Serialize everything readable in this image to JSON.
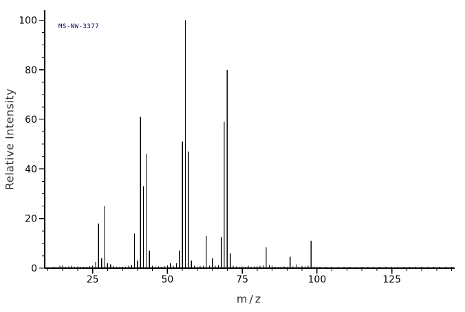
{
  "chart_data": {
    "type": "bar",
    "subtype": "mass-spectrum",
    "annotation": "MS-NW-3377",
    "xlabel": "m/z",
    "ylabel": "Relative Intensity",
    "x_min": 9,
    "x_max": 146,
    "y_min": 0,
    "y_max": 104,
    "x_major_ticks": [
      25,
      50,
      75,
      100,
      125
    ],
    "x_minor_tick_step": 5,
    "y_major_ticks": [
      0,
      20,
      40,
      60,
      80,
      100
    ],
    "y_minor_tick_step": 5,
    "grid": false,
    "legend": false,
    "main_peaks": [
      [
        26,
        2.5
      ],
      [
        27,
        18
      ],
      [
        28,
        4
      ],
      [
        29,
        25
      ],
      [
        30,
        2
      ],
      [
        31,
        1.5
      ],
      [
        38,
        1.2
      ],
      [
        39,
        14
      ],
      [
        40,
        3
      ],
      [
        41,
        61
      ],
      [
        42,
        33
      ],
      [
        43,
        46
      ],
      [
        44,
        7
      ],
      [
        51,
        2
      ],
      [
        53,
        2
      ],
      [
        54,
        7
      ],
      [
        55,
        51
      ],
      [
        56,
        100
      ],
      [
        57,
        47
      ],
      [
        58,
        3
      ],
      [
        63,
        13
      ],
      [
        65,
        4
      ],
      [
        68,
        12.5
      ],
      [
        69,
        59
      ],
      [
        70,
        80
      ],
      [
        71,
        6
      ],
      [
        83,
        8.5
      ],
      [
        91,
        4.5
      ],
      [
        93,
        1.5
      ],
      [
        98,
        11
      ]
    ],
    "noise_peaks": [
      [
        12,
        0.6
      ],
      [
        14,
        0.9
      ],
      [
        15,
        1.1
      ],
      [
        16,
        0.5
      ],
      [
        17,
        0.7
      ],
      [
        18,
        1.0
      ],
      [
        19,
        0.5
      ],
      [
        20,
        0.7
      ],
      [
        21,
        0.5
      ],
      [
        22,
        0.6
      ],
      [
        23,
        0.5
      ],
      [
        24,
        0.8
      ],
      [
        25,
        0.9
      ],
      [
        32,
        0.8
      ],
      [
        33,
        0.5
      ],
      [
        34,
        0.5
      ],
      [
        35,
        0.6
      ],
      [
        36,
        0.5
      ],
      [
        37,
        0.9
      ],
      [
        45,
        1.0
      ],
      [
        46,
        0.6
      ],
      [
        47,
        0.7
      ],
      [
        48,
        0.5
      ],
      [
        49,
        0.8
      ],
      [
        50,
        1.1
      ],
      [
        52,
        0.9
      ],
      [
        59,
        0.9
      ],
      [
        60,
        0.6
      ],
      [
        61,
        0.8
      ],
      [
        62,
        1.0
      ],
      [
        64,
        0.9
      ],
      [
        66,
        0.9
      ],
      [
        67,
        1.2
      ],
      [
        72,
        1.0
      ],
      [
        73,
        0.7
      ],
      [
        74,
        0.6
      ],
      [
        75,
        0.7
      ],
      [
        76,
        0.6
      ],
      [
        77,
        0.9
      ],
      [
        78,
        0.6
      ],
      [
        79,
        0.7
      ],
      [
        80,
        0.7
      ],
      [
        81,
        0.9
      ],
      [
        82,
        1.1
      ],
      [
        84,
        1.3
      ],
      [
        85,
        0.9
      ],
      [
        86,
        0.6
      ],
      [
        87,
        0.5
      ],
      [
        88,
        0.6
      ],
      [
        89,
        0.7
      ],
      [
        90,
        0.6
      ],
      [
        92,
        0.7
      ],
      [
        94,
        0.6
      ],
      [
        95,
        0.8
      ],
      [
        96,
        0.7
      ],
      [
        97,
        0.9
      ],
      [
        99,
        0.7
      ],
      [
        100,
        0.6
      ],
      [
        101,
        0.5
      ],
      [
        103,
        0.6
      ],
      [
        105,
        0.6
      ],
      [
        107,
        0.5
      ],
      [
        109,
        0.6
      ],
      [
        111,
        0.5
      ],
      [
        113,
        0.6
      ],
      [
        115,
        0.5
      ],
      [
        117,
        0.6
      ],
      [
        119,
        0.5
      ],
      [
        121,
        0.6
      ],
      [
        123,
        0.5
      ],
      [
        125,
        0.6
      ],
      [
        127,
        0.5
      ],
      [
        129,
        0.6
      ],
      [
        131,
        0.5
      ],
      [
        133,
        0.6
      ],
      [
        135,
        0.5
      ],
      [
        137,
        0.6
      ],
      [
        139,
        0.5
      ],
      [
        141,
        0.6
      ],
      [
        143,
        0.5
      ],
      [
        145,
        0.5
      ]
    ],
    "colors": {
      "background": "#ffffff",
      "axis": "#000000",
      "bars": "#000000",
      "tick_labels": "#000000",
      "axis_titles": "#333333",
      "annotation": "#000066"
    }
  }
}
